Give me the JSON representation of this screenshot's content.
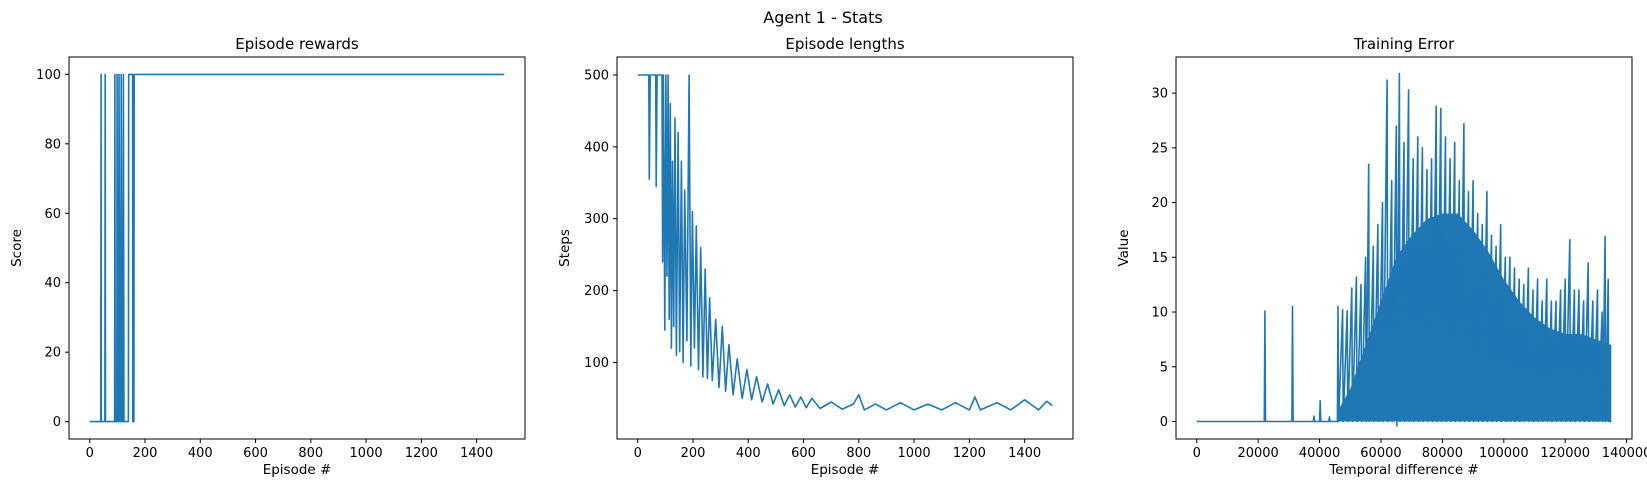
{
  "figure": {
    "suptitle": "Agent 1 - Stats"
  },
  "colors": {
    "series": "#1f77b4",
    "axes": "#000000",
    "background": "#ffffff"
  },
  "chart_data": [
    {
      "type": "line",
      "title": "Episode rewards",
      "xlabel": "Episode #",
      "ylabel": "Score",
      "xlim": [
        -75,
        1575
      ],
      "ylim": [
        -5,
        105
      ],
      "xticks": [
        0,
        200,
        400,
        600,
        800,
        1000,
        1200,
        1400
      ],
      "yticks": [
        0,
        20,
        40,
        60,
        80,
        100
      ],
      "grid": false,
      "series": [
        {
          "points": [
            [
              0,
              0
            ],
            [
              40,
              0
            ],
            [
              41,
              100
            ],
            [
              42,
              0
            ],
            [
              55,
              0
            ],
            [
              56,
              100
            ],
            [
              57,
              0
            ],
            [
              90,
              0
            ],
            [
              91,
              100
            ],
            [
              92,
              0
            ],
            [
              98,
              0
            ],
            [
              99,
              100
            ],
            [
              101,
              0
            ],
            [
              105,
              0
            ],
            [
              106,
              100
            ],
            [
              110,
              0
            ],
            [
              113,
              0
            ],
            [
              114,
              100
            ],
            [
              118,
              0
            ],
            [
              121,
              0
            ],
            [
              122,
              100
            ],
            [
              124,
              0
            ],
            [
              140,
              0
            ],
            [
              141,
              100
            ],
            [
              155,
              100
            ],
            [
              156,
              0
            ],
            [
              160,
              0
            ],
            [
              161,
              100
            ],
            [
              1500,
              100
            ]
          ]
        }
      ]
    },
    {
      "type": "line",
      "title": "Episode lengths",
      "xlabel": "Episode #",
      "ylabel": "Steps",
      "xlim": [
        -75,
        1575
      ],
      "ylim": [
        -6.5,
        525
      ],
      "xticks": [
        0,
        200,
        400,
        600,
        800,
        1000,
        1200,
        1400
      ],
      "yticks": [
        100,
        200,
        300,
        400,
        500
      ],
      "grid": false,
      "series": [
        {
          "points": [
            [
              0,
              500
            ],
            [
              40,
              500
            ],
            [
              42,
              355
            ],
            [
              45,
              500
            ],
            [
              65,
              500
            ],
            [
              67,
              345
            ],
            [
              70,
              500
            ],
            [
              88,
              500
            ],
            [
              90,
              240
            ],
            [
              93,
              500
            ],
            [
              98,
              145
            ],
            [
              102,
              500
            ],
            [
              106,
              220
            ],
            [
              110,
              500
            ],
            [
              114,
              160
            ],
            [
              118,
              460
            ],
            [
              122,
              120
            ],
            [
              126,
              380
            ],
            [
              130,
              150
            ],
            [
              135,
              440
            ],
            [
              140,
              110
            ],
            [
              146,
              420
            ],
            [
              152,
              115
            ],
            [
              158,
              380
            ],
            [
              164,
              100
            ],
            [
              170,
              340
            ],
            [
              178,
              130
            ],
            [
              186,
              500
            ],
            [
              192,
              95
            ],
            [
              198,
              310
            ],
            [
              205,
              120
            ],
            [
              212,
              290
            ],
            [
              220,
              90
            ],
            [
              228,
              260
            ],
            [
              236,
              80
            ],
            [
              244,
              230
            ],
            [
              252,
              78
            ],
            [
              260,
              190
            ],
            [
              270,
              75
            ],
            [
              282,
              160
            ],
            [
              294,
              65
            ],
            [
              306,
              150
            ],
            [
              318,
              60
            ],
            [
              330,
              125
            ],
            [
              345,
              55
            ],
            [
              360,
              105
            ],
            [
              378,
              50
            ],
            [
              395,
              90
            ],
            [
              412,
              48
            ],
            [
              430,
              80
            ],
            [
              450,
              45
            ],
            [
              470,
              70
            ],
            [
              490,
              42
            ],
            [
              510,
              62
            ],
            [
              530,
              40
            ],
            [
              550,
              55
            ],
            [
              570,
              38
            ],
            [
              590,
              52
            ],
            [
              610,
              37
            ],
            [
              630,
              50
            ],
            [
              660,
              36
            ],
            [
              700,
              45
            ],
            [
              740,
              35
            ],
            [
              780,
              42
            ],
            [
              800,
              55
            ],
            [
              820,
              34
            ],
            [
              860,
              42
            ],
            [
              900,
              34
            ],
            [
              950,
              44
            ],
            [
              1000,
              34
            ],
            [
              1050,
              42
            ],
            [
              1100,
              34
            ],
            [
              1150,
              44
            ],
            [
              1200,
              34
            ],
            [
              1220,
              52
            ],
            [
              1240,
              34
            ],
            [
              1300,
              44
            ],
            [
              1350,
              34
            ],
            [
              1400,
              48
            ],
            [
              1450,
              34
            ],
            [
              1480,
              46
            ],
            [
              1500,
              40
            ]
          ]
        }
      ]
    },
    {
      "type": "line",
      "title": "Training Error",
      "xlabel": "Temporal difference #",
      "ylabel": "Value",
      "xlim": [
        -6750,
        141750
      ],
      "ylim": [
        -1.6,
        33.3
      ],
      "xticks": [
        0,
        20000,
        40000,
        60000,
        80000,
        100000,
        120000,
        140000
      ],
      "yticks": [
        0,
        5,
        10,
        15,
        20,
        25,
        30
      ],
      "grid": false,
      "series": [
        {
          "points": [
            [
              0,
              0
            ],
            [
              22000,
              0
            ],
            [
              22200,
              10.1
            ],
            [
              22400,
              0
            ],
            [
              31000,
              0
            ],
            [
              31200,
              10.5
            ],
            [
              31400,
              0
            ],
            [
              38000,
              0
            ],
            [
              38200,
              0.5
            ],
            [
              38400,
              0
            ],
            [
              40000,
              0
            ],
            [
              40200,
              1.9
            ],
            [
              40400,
              0
            ],
            [
              43000,
              0
            ],
            [
              43200,
              0.4
            ],
            [
              43400,
              0
            ],
            [
              45800,
              0
            ],
            [
              46000,
              10.5
            ],
            [
              46200,
              0
            ],
            [
              47500,
              10.2
            ],
            [
              47700,
              0
            ],
            [
              49000,
              10.1
            ],
            [
              49200,
              0
            ],
            [
              50500,
              12.2
            ],
            [
              50700,
              0
            ],
            [
              52000,
              13.2
            ],
            [
              52200,
              0
            ],
            [
              53500,
              12.5
            ],
            [
              53700,
              0
            ],
            [
              55000,
              15
            ],
            [
              55200,
              0
            ],
            [
              56000,
              23.5
            ],
            [
              56200,
              0
            ],
            [
              57500,
              16
            ],
            [
              57700,
              0
            ],
            [
              59000,
              18
            ],
            [
              59200,
              0
            ],
            [
              60500,
              20
            ],
            [
              60700,
              0
            ],
            [
              62000,
              31.2
            ],
            [
              62200,
              0
            ],
            [
              63500,
              22
            ],
            [
              63700,
              0
            ],
            [
              65000,
              27
            ],
            [
              65200,
              -0.4
            ],
            [
              66000,
              31.8
            ],
            [
              66200,
              0
            ],
            [
              67500,
              25.5
            ],
            [
              67700,
              0
            ],
            [
              69000,
              30.3
            ],
            [
              69200,
              0
            ],
            [
              70500,
              24
            ],
            [
              70700,
              0
            ],
            [
              72000,
              26
            ],
            [
              72200,
              0
            ],
            [
              73500,
              25
            ],
            [
              73700,
              0
            ],
            [
              75000,
              23
            ],
            [
              75200,
              0
            ],
            [
              76500,
              24
            ],
            [
              76700,
              0
            ],
            [
              78000,
              28.8
            ],
            [
              78200,
              0
            ],
            [
              79500,
              28.6
            ],
            [
              79700,
              0
            ],
            [
              81000,
              26
            ],
            [
              81200,
              0
            ],
            [
              82500,
              24
            ],
            [
              82700,
              0
            ],
            [
              84000,
              25.5
            ],
            [
              84200,
              0
            ],
            [
              85500,
              22
            ],
            [
              85700,
              0
            ],
            [
              87000,
              27.2
            ],
            [
              87200,
              0
            ],
            [
              88500,
              21
            ],
            [
              88700,
              0
            ],
            [
              90000,
              22
            ],
            [
              90200,
              0
            ],
            [
              91500,
              19
            ],
            [
              91700,
              0
            ],
            [
              93000,
              18
            ],
            [
              93200,
              0
            ],
            [
              94500,
              21
            ],
            [
              94700,
              0
            ],
            [
              96000,
              17
            ],
            [
              96200,
              0
            ],
            [
              97500,
              16
            ],
            [
              97700,
              0
            ],
            [
              99000,
              18
            ],
            [
              99200,
              0
            ],
            [
              100500,
              15
            ],
            [
              100700,
              0
            ],
            [
              102000,
              15
            ],
            [
              102200,
              0
            ],
            [
              103500,
              14
            ],
            [
              103700,
              0
            ],
            [
              105000,
              13
            ],
            [
              105200,
              0
            ],
            [
              106500,
              12.5
            ],
            [
              106700,
              0
            ],
            [
              108000,
              14
            ],
            [
              108200,
              0
            ],
            [
              109500,
              12
            ],
            [
              109700,
              0
            ],
            [
              111000,
              13
            ],
            [
              111200,
              0
            ],
            [
              112500,
              11
            ],
            [
              112700,
              0
            ],
            [
              114000,
              13
            ],
            [
              114200,
              0
            ],
            [
              115500,
              11
            ],
            [
              115700,
              0
            ],
            [
              117000,
              11
            ],
            [
              117200,
              0
            ],
            [
              118500,
              12
            ],
            [
              118700,
              0
            ],
            [
              120000,
              13
            ],
            [
              120200,
              0
            ],
            [
              121500,
              16.6
            ],
            [
              121700,
              0
            ],
            [
              123000,
              12
            ],
            [
              123200,
              0
            ],
            [
              124500,
              12
            ],
            [
              124700,
              0
            ],
            [
              126000,
              11
            ],
            [
              126200,
              0
            ],
            [
              127500,
              14.5
            ],
            [
              127700,
              0
            ],
            [
              129000,
              11
            ],
            [
              129200,
              0
            ],
            [
              130500,
              12
            ],
            [
              130700,
              0
            ],
            [
              132000,
              10
            ],
            [
              132200,
              0
            ],
            [
              133000,
              16.9
            ],
            [
              133200,
              0
            ],
            [
              134000,
              13
            ],
            [
              134200,
              0
            ],
            [
              135000,
              0
            ]
          ]
        }
      ],
      "fill_density": [
        {
          "x_start": 46000,
          "x_end": 135000,
          "envelope": [
            [
              46000,
              1
            ],
            [
              50000,
              3
            ],
            [
              55000,
              7
            ],
            [
              60000,
              11
            ],
            [
              65000,
              15
            ],
            [
              70000,
              17
            ],
            [
              75000,
              18.5
            ],
            [
              80000,
              19
            ],
            [
              85000,
              19
            ],
            [
              90000,
              17.5
            ],
            [
              95000,
              15.5
            ],
            [
              100000,
              13
            ],
            [
              105000,
              11
            ],
            [
              110000,
              9.5
            ],
            [
              115000,
              8.5
            ],
            [
              120000,
              8
            ],
            [
              125000,
              8
            ],
            [
              130000,
              7.5
            ],
            [
              135000,
              7
            ]
          ]
        }
      ]
    }
  ]
}
